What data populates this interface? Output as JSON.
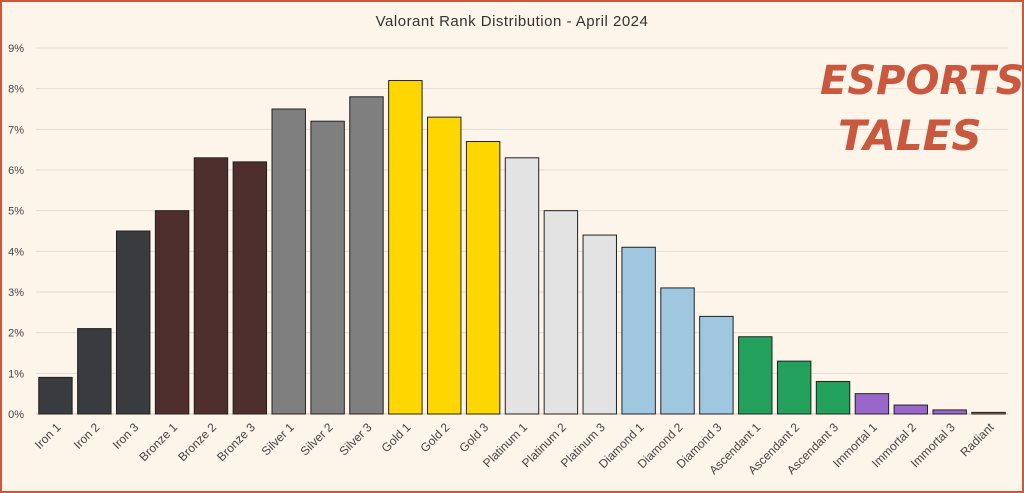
{
  "chart_data": {
    "type": "bar",
    "title": "Valorant Rank Distribution  - April 2024",
    "xlabel": "",
    "ylabel": "",
    "ylim": [
      0,
      9
    ],
    "yticks": [
      "0%",
      "1%",
      "2%",
      "3%",
      "4%",
      "5%",
      "6%",
      "7%",
      "8%",
      "9%"
    ],
    "grid": true,
    "categories": [
      "Iron 1",
      "Iron 2",
      "Iron 3",
      "Bronze 1",
      "Bronze 2",
      "Bronze 3",
      "Silver 1",
      "Silver 2",
      "Silver 3",
      "Gold 1",
      "Gold 2",
      "Gold 3",
      "Platinum 1",
      "Platinum 2",
      "Platinum 3",
      "Diamond 1",
      "Diamond 2",
      "Diamond 3",
      "Ascendant 1",
      "Ascendant 2",
      "Ascendant 3",
      "Immortal 1",
      "Immortal 2",
      "Immortal 3",
      "Radiant"
    ],
    "values": [
      0.9,
      2.1,
      4.5,
      5.0,
      6.3,
      6.2,
      7.5,
      7.2,
      7.8,
      8.2,
      7.3,
      6.7,
      6.3,
      5.0,
      4.4,
      4.1,
      3.1,
      2.4,
      1.9,
      1.3,
      0.8,
      0.5,
      0.22,
      0.1,
      0.04
    ],
    "colors": [
      "#3a3b3f",
      "#3a3b3f",
      "#3a3b3f",
      "#4f2f2d",
      "#4f2f2d",
      "#4f2f2d",
      "#7f7f7f",
      "#7f7f7f",
      "#7f7f7f",
      "#ffd700",
      "#ffd700",
      "#ffd700",
      "#e3e3e3",
      "#e3e3e3",
      "#e3e3e3",
      "#9fc8e0",
      "#9fc8e0",
      "#9fc8e0",
      "#22a05c",
      "#22a05c",
      "#22a05c",
      "#9966cc",
      "#9966cc",
      "#9966cc",
      "#b5714a"
    ]
  },
  "logo": {
    "line1": "ESPORTS",
    "line2": "TALES",
    "color": "#c9583f"
  }
}
